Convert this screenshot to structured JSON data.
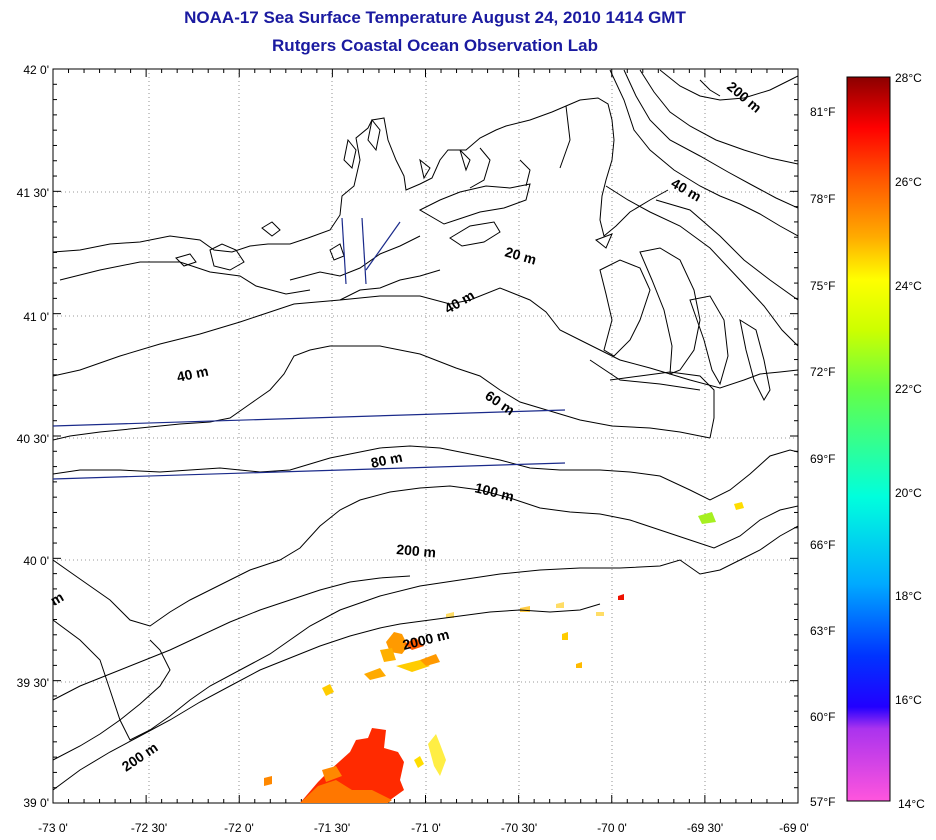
{
  "title": "NOAA-17 Sea Surface Temperature August 24, 2010 1414 GMT",
  "subtitle": "Rutgers Coastal Ocean Observation Lab",
  "map": {
    "lon_labels": [
      "-73 0'",
      "-72 30'",
      "-72 0'",
      "-71 30'",
      "-71 0'",
      "-70 30'",
      "-70 0'",
      "-69 30'",
      "-69 0'"
    ],
    "lat_labels": [
      "42 0'",
      "41 30'",
      "41 0'",
      "40 30'",
      "40 0'",
      "39 30'",
      "39 0'"
    ],
    "fahrenheit_labels": [
      "81°F",
      "78°F",
      "75°F",
      "72°F",
      "69°F",
      "66°F",
      "63°F",
      "60°F",
      "57°F"
    ],
    "contour_labels": [
      {
        "text": "200 m"
      },
      {
        "text": "40 m"
      },
      {
        "text": "20 m"
      },
      {
        "text": "40 m"
      },
      {
        "text": "40 m"
      },
      {
        "text": "60 m"
      },
      {
        "text": "80 m"
      },
      {
        "text": "100 m"
      },
      {
        "text": "200 m"
      },
      {
        "text": "2000 m"
      },
      {
        "text": "200 m"
      },
      {
        "text": "m"
      }
    ]
  },
  "colorbar": {
    "labels": [
      "28°C",
      "26°C",
      "24°C",
      "22°C",
      "20°C",
      "18°C",
      "16°C",
      "14°C"
    ]
  },
  "colors": {
    "title": "#1a1aa0",
    "track_line": "#1a2a8a",
    "sst_warm": "#ff2200",
    "sst_mid": "#ff9900",
    "sst_yellow": "#ffee00"
  }
}
